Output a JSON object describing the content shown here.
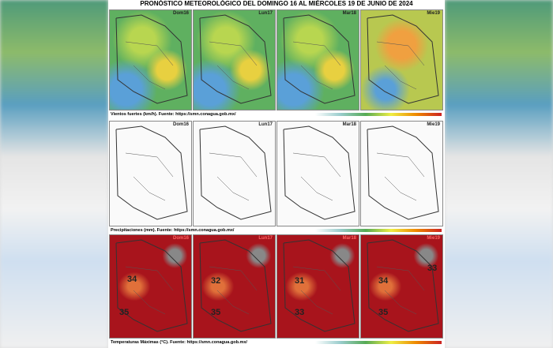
{
  "title": "PRONÓSTICO METEOROLÓGICO DEL DOMINGO 16 AL MIÉRCOLES 19 DE JUNIO DE 2024",
  "panels": [
    {
      "caption": "Vientos fuertes (km/h).  Fuente: https://smn.conagua.gob.mx/",
      "days": [
        "Dom16",
        "Lun17",
        "Mar18",
        "Mie19"
      ]
    },
    {
      "caption": "Precipitaciones (mm).  Fuente: https://smn.conagua.gob.mx/",
      "days": [
        "Dom16",
        "Lun17",
        "Mar18",
        "Mie19"
      ]
    },
    {
      "caption": "Temperaturas Máximas (°C).  Fuente: https://smn.conagua.gob.mx/",
      "days": [
        "Dom16",
        "Lun17",
        "Mar18",
        "Mie19"
      ]
    }
  ],
  "temperature_labels": [
    [
      34,
      35
    ],
    [
      32,
      35
    ],
    [
      31,
      33
    ],
    [
      34,
      35,
      33
    ]
  ]
}
